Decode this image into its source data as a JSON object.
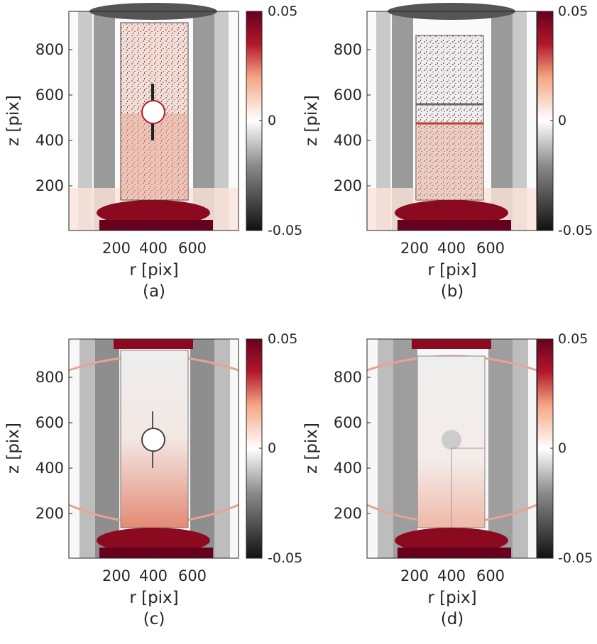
{
  "colorbar": {
    "max_label": "0.05",
    "mid_label": "0",
    "min_label": "-0.05",
    "colors": [
      "#1a1a1a",
      "#8c8c8c",
      "#ffffff",
      "#f4a582",
      "#b2182b",
      "#67001f"
    ]
  },
  "axes": {
    "xlabel": "r [pix]",
    "ylabel": "z [pix]",
    "xticks": [
      "200",
      "400",
      "600"
    ],
    "yticks": [
      "200",
      "400",
      "600",
      "800"
    ]
  },
  "panels": [
    {
      "id": "a",
      "caption": "(a)",
      "variant": "hole-noisy"
    },
    {
      "id": "b",
      "caption": "(b)",
      "variant": "crack-noisy"
    },
    {
      "id": "c",
      "caption": "(c)",
      "variant": "hole-smooth"
    },
    {
      "id": "d",
      "caption": "(d)",
      "variant": "faint-smooth"
    }
  ]
}
